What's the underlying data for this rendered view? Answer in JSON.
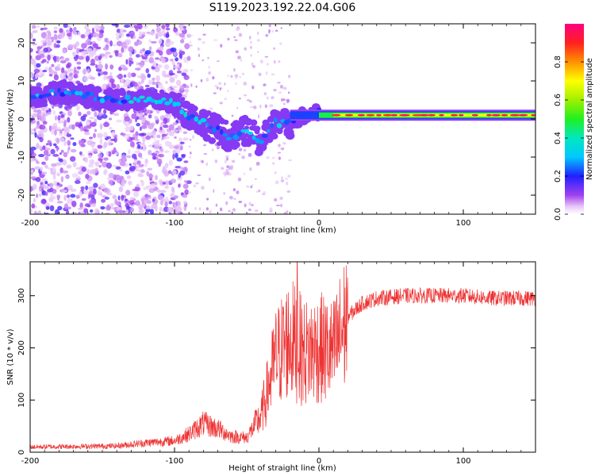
{
  "title": "S119.2023.192.22.04.G06",
  "chart_data": [
    {
      "type": "heatmap",
      "xlabel": "Height of straight line (km)",
      "ylabel": "Frequency (Hz)",
      "xlim": [
        -200,
        150
      ],
      "ylim": [
        -25,
        25
      ],
      "x_ticks": [
        -200,
        -100,
        0,
        100
      ],
      "y_ticks": [
        -20,
        -10,
        0,
        10,
        20
      ],
      "colorbar": {
        "label": "Normalized spectral amplitude",
        "range": [
          0,
          1
        ],
        "ticks": [
          0.0,
          0.2,
          0.4,
          0.6,
          0.8
        ],
        "tick_labels": [
          "0.0",
          "0.2",
          "0.4",
          "0.6",
          "0.8"
        ],
        "colormap": "rainbow (white-violet-blue-cyan-green-yellow-orange-red-magenta)"
      },
      "ridge": [
        {
          "x": -200,
          "y": 6
        },
        {
          "x": -180,
          "y": 7
        },
        {
          "x": -160,
          "y": 6
        },
        {
          "x": -140,
          "y": 5
        },
        {
          "x": -120,
          "y": 5
        },
        {
          "x": -110,
          "y": 5
        },
        {
          "x": -100,
          "y": 4
        },
        {
          "x": -90,
          "y": 1
        },
        {
          "x": -80,
          "y": -1
        },
        {
          "x": -70,
          "y": -3
        },
        {
          "x": -60,
          "y": -5
        },
        {
          "x": -50,
          "y": -3
        },
        {
          "x": -40,
          "y": -6
        },
        {
          "x": -30,
          "y": -1
        },
        {
          "x": -20,
          "y": -1
        },
        {
          "x": -10,
          "y": 1
        },
        {
          "x": 0,
          "y": 2
        },
        {
          "x": 10,
          "y": 1
        },
        {
          "x": 50,
          "y": 1
        },
        {
          "x": 100,
          "y": 1
        },
        {
          "x": 150,
          "y": 1
        }
      ]
    },
    {
      "type": "line",
      "xlabel": "Height of straight line (km)",
      "ylabel": "SNR (10 * v/v)",
      "xlim": [
        -200,
        150
      ],
      "ylim": [
        0,
        365
      ],
      "x_ticks": [
        -200,
        -100,
        0,
        100
      ],
      "y_ticks": [
        0,
        100,
        200,
        300
      ],
      "color": "#ee3333",
      "envelope": [
        {
          "x": -200,
          "y": 10
        },
        {
          "x": -140,
          "y": 12
        },
        {
          "x": -120,
          "y": 18
        },
        {
          "x": -100,
          "y": 22
        },
        {
          "x": -90,
          "y": 35
        },
        {
          "x": -80,
          "y": 55
        },
        {
          "x": -70,
          "y": 45
        },
        {
          "x": -60,
          "y": 30
        },
        {
          "x": -50,
          "y": 28
        },
        {
          "x": -40,
          "y": 70
        },
        {
          "x": -30,
          "y": 180
        },
        {
          "x": -20,
          "y": 220
        },
        {
          "x": -10,
          "y": 190
        },
        {
          "x": 0,
          "y": 200
        },
        {
          "x": 10,
          "y": 190
        },
        {
          "x": 20,
          "y": 260
        },
        {
          "x": 30,
          "y": 285
        },
        {
          "x": 40,
          "y": 295
        },
        {
          "x": 60,
          "y": 300
        },
        {
          "x": 80,
          "y": 300
        },
        {
          "x": 100,
          "y": 300
        },
        {
          "x": 120,
          "y": 295
        },
        {
          "x": 150,
          "y": 295
        }
      ],
      "peak": {
        "x": -15,
        "y": 365
      }
    }
  ]
}
